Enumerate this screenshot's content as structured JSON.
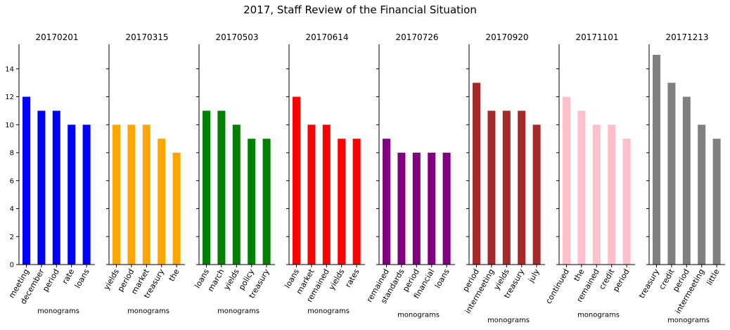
{
  "figure": {
    "title": "2017, Staff Review of the Financial Situation"
  },
  "chart_data": [
    {
      "type": "bar",
      "title": "20170201",
      "xlabel": "monograms",
      "ylabel": "",
      "categories": [
        "meeting",
        "december",
        "period",
        "rate",
        "loans"
      ],
      "values": [
        12,
        11,
        11,
        10,
        10
      ],
      "color": "#0000ff",
      "ylim": [
        0,
        15.75
      ],
      "yticks": [
        0,
        2,
        4,
        6,
        8,
        10,
        12,
        14
      ],
      "show_ytick_labels": true
    },
    {
      "type": "bar",
      "title": "20170315",
      "xlabel": "monograms",
      "ylabel": "",
      "categories": [
        "yields",
        "period",
        "market",
        "treasury",
        "the"
      ],
      "values": [
        10,
        10,
        10,
        9,
        8
      ],
      "color": "#ffa500",
      "ylim": [
        0,
        15.75
      ],
      "yticks": [
        0,
        2,
        4,
        6,
        8,
        10,
        12,
        14
      ],
      "show_ytick_labels": false
    },
    {
      "type": "bar",
      "title": "20170503",
      "xlabel": "monograms",
      "ylabel": "",
      "categories": [
        "loans",
        "march",
        "yields",
        "policy",
        "treasury"
      ],
      "values": [
        11,
        11,
        10,
        9,
        9
      ],
      "color": "#008000",
      "ylim": [
        0,
        15.75
      ],
      "yticks": [
        0,
        2,
        4,
        6,
        8,
        10,
        12,
        14
      ],
      "show_ytick_labels": false
    },
    {
      "type": "bar",
      "title": "20170614",
      "xlabel": "monograms",
      "ylabel": "",
      "categories": [
        "loans",
        "market",
        "remained",
        "yields",
        "rates"
      ],
      "values": [
        12,
        10,
        10,
        9,
        9
      ],
      "color": "#ff0000",
      "ylim": [
        0,
        15.75
      ],
      "yticks": [
        0,
        2,
        4,
        6,
        8,
        10,
        12,
        14
      ],
      "show_ytick_labels": false
    },
    {
      "type": "bar",
      "title": "20170726",
      "xlabel": "monograms",
      "ylabel": "",
      "categories": [
        "remained",
        "standards",
        "period",
        "financial",
        "loans"
      ],
      "values": [
        9,
        8,
        8,
        8,
        8
      ],
      "color": "#800080",
      "ylim": [
        0,
        15.75
      ],
      "yticks": [
        0,
        2,
        4,
        6,
        8,
        10,
        12,
        14
      ],
      "show_ytick_labels": false
    },
    {
      "type": "bar",
      "title": "20170920",
      "xlabel": "monograms",
      "ylabel": "",
      "categories": [
        "period",
        "intermeeting",
        "yields",
        "treasury",
        "july"
      ],
      "values": [
        13,
        11,
        11,
        11,
        10
      ],
      "color": "#a52a2a",
      "ylim": [
        0,
        15.75
      ],
      "yticks": [
        0,
        2,
        4,
        6,
        8,
        10,
        12,
        14
      ],
      "show_ytick_labels": false
    },
    {
      "type": "bar",
      "title": "20171101",
      "xlabel": "monograms",
      "ylabel": "",
      "categories": [
        "continued",
        "the",
        "remained",
        "credit",
        "period"
      ],
      "values": [
        12,
        11,
        10,
        10,
        9
      ],
      "color": "#ffc0cb",
      "ylim": [
        0,
        15.75
      ],
      "yticks": [
        0,
        2,
        4,
        6,
        8,
        10,
        12,
        14
      ],
      "show_ytick_labels": false
    },
    {
      "type": "bar",
      "title": "20171213",
      "xlabel": "monograms",
      "ylabel": "",
      "categories": [
        "treasury",
        "credit",
        "period",
        "intermeeting",
        "little"
      ],
      "values": [
        15,
        13,
        12,
        10,
        9
      ],
      "color": "#808080",
      "ylim": [
        0,
        15.75
      ],
      "yticks": [
        0,
        2,
        4,
        6,
        8,
        10,
        12,
        14
      ],
      "show_ytick_labels": false
    }
  ]
}
